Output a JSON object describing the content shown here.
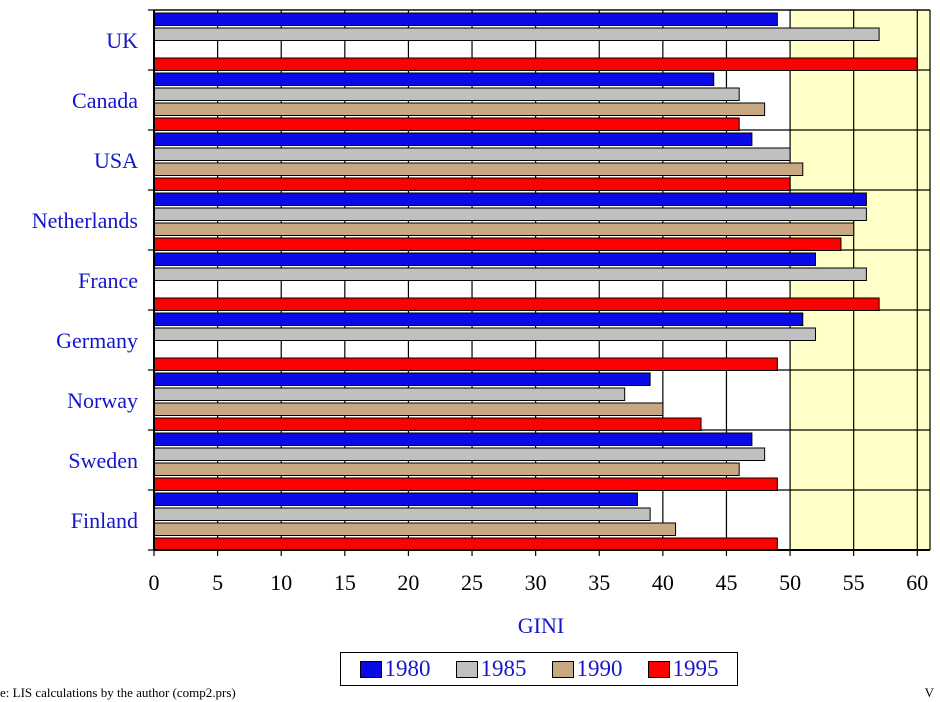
{
  "chart_data": {
    "type": "bar",
    "orientation": "horizontal",
    "categories": [
      "UK",
      "Canada",
      "USA",
      "Netherlands",
      "France",
      "Germany",
      "Norway",
      "Sweden",
      "Finland"
    ],
    "series": [
      {
        "name": "1980",
        "color": "#0a0ae6",
        "values": [
          49,
          44,
          47,
          56,
          52,
          51,
          39,
          47,
          38
        ]
      },
      {
        "name": "1985",
        "color": "#c0c0c0",
        "values": [
          57,
          46,
          50,
          56,
          56,
          52,
          37,
          48,
          39
        ]
      },
      {
        "name": "1990",
        "color": "#c8a882",
        "values": [
          null,
          48,
          51,
          55,
          null,
          null,
          40,
          46,
          41
        ]
      },
      {
        "name": "1995",
        "color": "#ff0000",
        "values": [
          60,
          46,
          50,
          54,
          57,
          49,
          43,
          49,
          49
        ]
      }
    ],
    "xlabel": "GINI",
    "xticks": [
      0,
      5,
      10,
      15,
      20,
      25,
      30,
      35,
      40,
      45,
      50,
      55,
      60
    ],
    "xlim": [
      0,
      61
    ],
    "grid": true,
    "shaded_region_from": 50,
    "legend_placement": "bottom",
    "colors": {
      "text": "#1515c9",
      "plot_background": "#ffffff",
      "shaded_background": "#ffffc8"
    }
  },
  "footnote_left": "e: LIS calculations by the author (comp2.prs)",
  "footnote_right": "V"
}
